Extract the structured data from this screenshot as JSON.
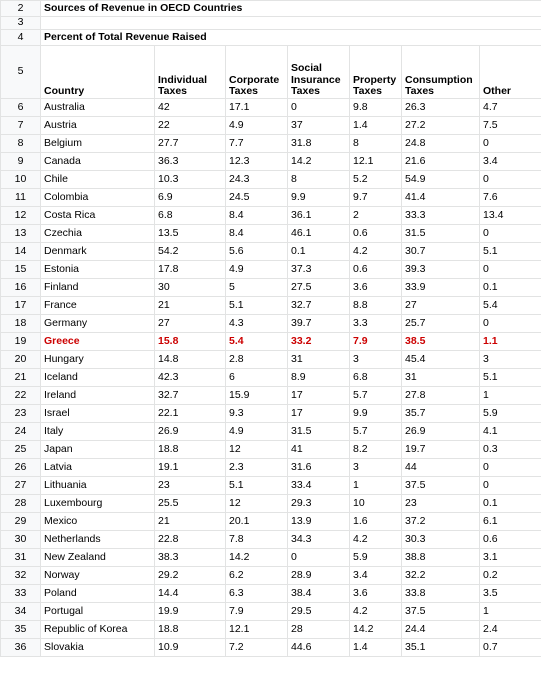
{
  "title": "Sources of Revenue in OECD Countries",
  "subtitle": "Percent of Total Revenue Raised",
  "row_numbers": {
    "title": "2",
    "blank": "3",
    "subtitle": "4",
    "header": "5"
  },
  "headers": [
    "Country",
    "Individual Taxes",
    "Corporate Taxes",
    "Social Insurance Taxes",
    "Property Taxes",
    "Consumption Taxes",
    "Other"
  ],
  "highlight_color": "#cc0000",
  "rows": [
    {
      "n": "6",
      "country": "Australia",
      "individual": "42",
      "corporate": "17.1",
      "social": "0",
      "property": "9.8",
      "consumption": "26.3",
      "other": "4.7"
    },
    {
      "n": "7",
      "country": "Austria",
      "individual": "22",
      "corporate": "4.9",
      "social": "37",
      "property": "1.4",
      "consumption": "27.2",
      "other": "7.5"
    },
    {
      "n": "8",
      "country": "Belgium",
      "individual": "27.7",
      "corporate": "7.7",
      "social": "31.8",
      "property": "8",
      "consumption": "24.8",
      "other": "0"
    },
    {
      "n": "9",
      "country": "Canada",
      "individual": "36.3",
      "corporate": "12.3",
      "social": "14.2",
      "property": "12.1",
      "consumption": "21.6",
      "other": "3.4"
    },
    {
      "n": "10",
      "country": "Chile",
      "individual": "10.3",
      "corporate": "24.3",
      "social": "8",
      "property": "5.2",
      "consumption": "54.9",
      "other": "0"
    },
    {
      "n": "11",
      "country": "Colombia",
      "individual": "6.9",
      "corporate": "24.5",
      "social": "9.9",
      "property": "9.7",
      "consumption": "41.4",
      "other": "7.6"
    },
    {
      "n": "12",
      "country": "Costa Rica",
      "individual": "6.8",
      "corporate": "8.4",
      "social": "36.1",
      "property": "2",
      "consumption": "33.3",
      "other": "13.4"
    },
    {
      "n": "13",
      "country": "Czechia",
      "individual": "13.5",
      "corporate": "8.4",
      "social": "46.1",
      "property": "0.6",
      "consumption": "31.5",
      "other": "0"
    },
    {
      "n": "14",
      "country": "Denmark",
      "individual": "54.2",
      "corporate": "5.6",
      "social": "0.1",
      "property": "4.2",
      "consumption": "30.7",
      "other": "5.1"
    },
    {
      "n": "15",
      "country": "Estonia",
      "individual": "17.8",
      "corporate": "4.9",
      "social": "37.3",
      "property": "0.6",
      "consumption": "39.3",
      "other": "0"
    },
    {
      "n": "16",
      "country": "Finland",
      "individual": "30",
      "corporate": "5",
      "social": "27.5",
      "property": "3.6",
      "consumption": "33.9",
      "other": "0.1"
    },
    {
      "n": "17",
      "country": "France",
      "individual": "21",
      "corporate": "5.1",
      "social": "32.7",
      "property": "8.8",
      "consumption": "27",
      "other": "5.4"
    },
    {
      "n": "18",
      "country": "Germany",
      "individual": "27",
      "corporate": "4.3",
      "social": "39.7",
      "property": "3.3",
      "consumption": "25.7",
      "other": "0"
    },
    {
      "n": "19",
      "country": "Greece",
      "individual": "15.8",
      "corporate": "5.4",
      "social": "33.2",
      "property": "7.9",
      "consumption": "38.5",
      "other": "1.1",
      "highlight": true
    },
    {
      "n": "20",
      "country": "Hungary",
      "individual": "14.8",
      "corporate": "2.8",
      "social": "31",
      "property": "3",
      "consumption": "45.4",
      "other": "3"
    },
    {
      "n": "21",
      "country": "Iceland",
      "individual": "42.3",
      "corporate": "6",
      "social": "8.9",
      "property": "6.8",
      "consumption": "31",
      "other": "5.1"
    },
    {
      "n": "22",
      "country": "Ireland",
      "individual": "32.7",
      "corporate": "15.9",
      "social": "17",
      "property": "5.7",
      "consumption": "27.8",
      "other": "1"
    },
    {
      "n": "23",
      "country": "Israel",
      "individual": "22.1",
      "corporate": "9.3",
      "social": "17",
      "property": "9.9",
      "consumption": "35.7",
      "other": "5.9"
    },
    {
      "n": "24",
      "country": "Italy",
      "individual": "26.9",
      "corporate": "4.9",
      "social": "31.5",
      "property": "5.7",
      "consumption": "26.9",
      "other": "4.1"
    },
    {
      "n": "25",
      "country": "Japan",
      "individual": "18.8",
      "corporate": "12",
      "social": "41",
      "property": "8.2",
      "consumption": "19.7",
      "other": "0.3"
    },
    {
      "n": "26",
      "country": "Latvia",
      "individual": "19.1",
      "corporate": "2.3",
      "social": "31.6",
      "property": "3",
      "consumption": "44",
      "other": "0"
    },
    {
      "n": "27",
      "country": "Lithuania",
      "individual": "23",
      "corporate": "5.1",
      "social": "33.4",
      "property": "1",
      "consumption": "37.5",
      "other": "0"
    },
    {
      "n": "28",
      "country": "Luxembourg",
      "individual": "25.5",
      "corporate": "12",
      "social": "29.3",
      "property": "10",
      "consumption": "23",
      "other": "0.1"
    },
    {
      "n": "29",
      "country": "Mexico",
      "individual": "21",
      "corporate": "20.1",
      "social": "13.9",
      "property": "1.6",
      "consumption": "37.2",
      "other": "6.1"
    },
    {
      "n": "30",
      "country": "Netherlands",
      "individual": "22.8",
      "corporate": "7.8",
      "social": "34.3",
      "property": "4.2",
      "consumption": "30.3",
      "other": "0.6"
    },
    {
      "n": "31",
      "country": "New Zealand",
      "individual": "38.3",
      "corporate": "14.2",
      "social": "0",
      "property": "5.9",
      "consumption": "38.8",
      "other": "3.1"
    },
    {
      "n": "32",
      "country": "Norway",
      "individual": "29.2",
      "corporate": "6.2",
      "social": "28.9",
      "property": "3.4",
      "consumption": "32.2",
      "other": "0.2"
    },
    {
      "n": "33",
      "country": "Poland",
      "individual": "14.4",
      "corporate": "6.3",
      "social": "38.4",
      "property": "3.6",
      "consumption": "33.8",
      "other": "3.5"
    },
    {
      "n": "34",
      "country": "Portugal",
      "individual": "19.9",
      "corporate": "7.9",
      "social": "29.5",
      "property": "4.2",
      "consumption": "37.5",
      "other": "1"
    },
    {
      "n": "35",
      "country": "Republic of Korea",
      "individual": "18.8",
      "corporate": "12.1",
      "social": "28",
      "property": "14.2",
      "consumption": "24.4",
      "other": "2.4"
    },
    {
      "n": "36",
      "country": "Slovakia",
      "individual": "10.9",
      "corporate": "7.2",
      "social": "44.6",
      "property": "1.4",
      "consumption": "35.1",
      "other": "0.7"
    }
  ]
}
